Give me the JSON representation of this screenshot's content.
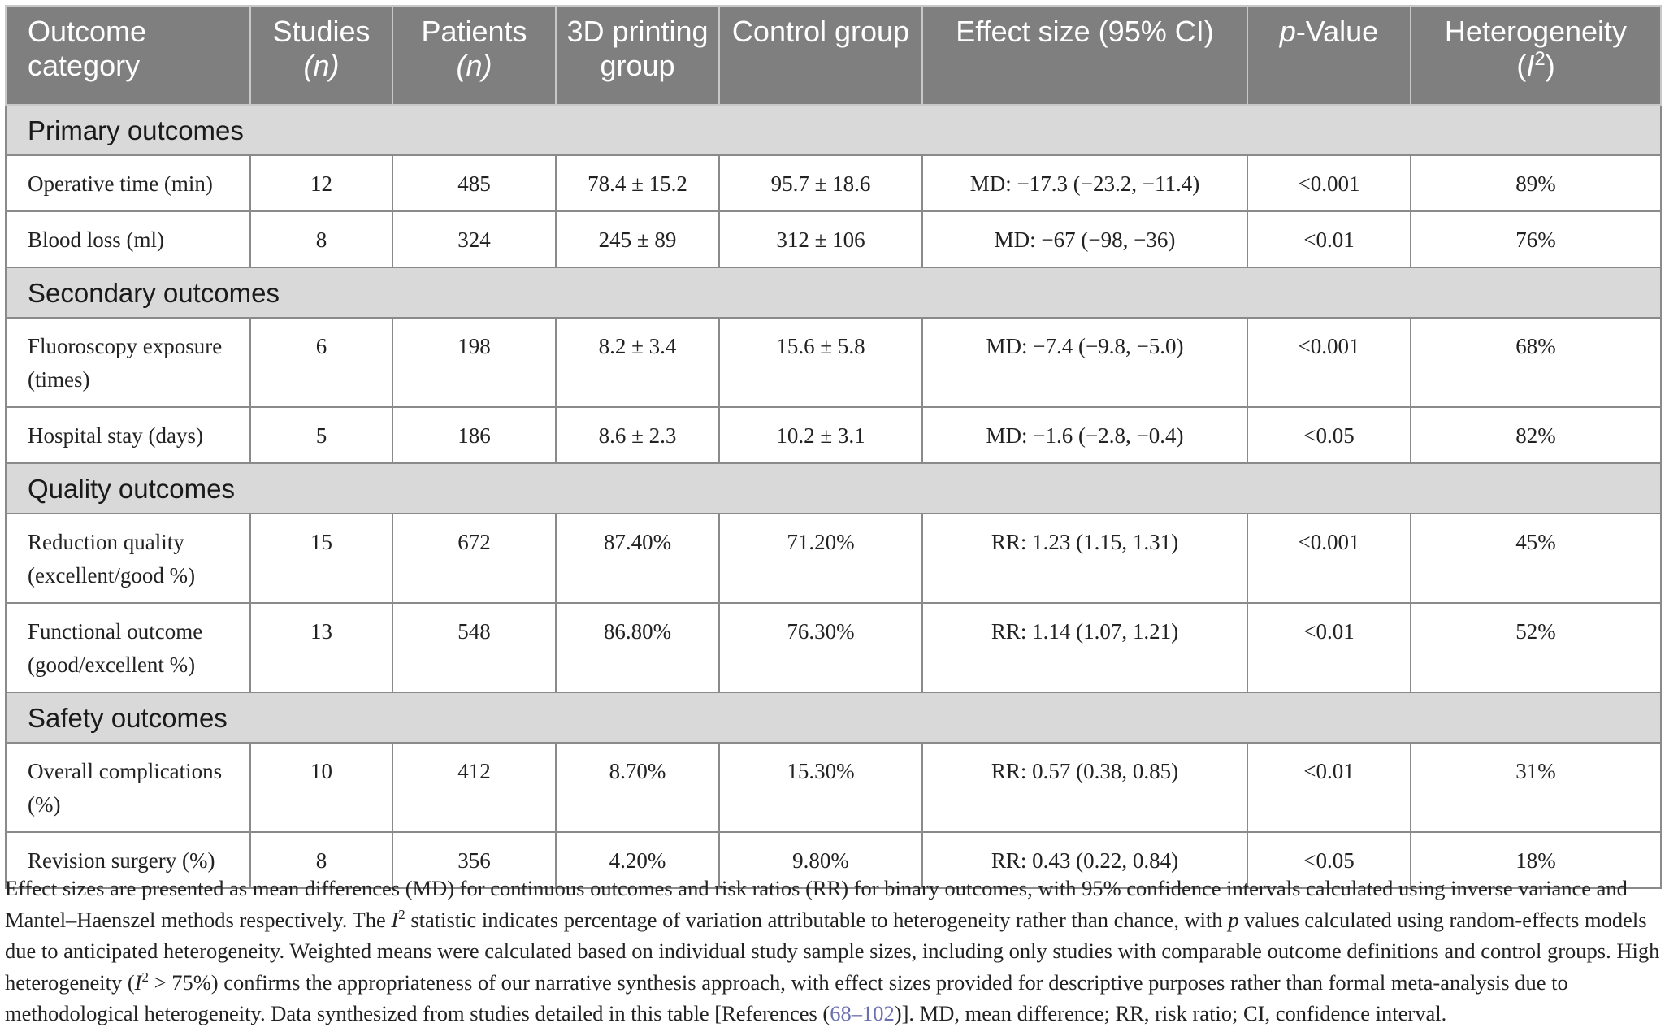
{
  "headers": {
    "outcome": "Outcome category",
    "studies": "Studies",
    "studies_n": "(n)",
    "patients": "Patients",
    "patients_n": "(n)",
    "printing": "3D printing group",
    "control": "Control group",
    "effect": "Effect size (95% CI)",
    "pvalue_p": "p",
    "pvalue_rest": "-Value",
    "het": "Heterogeneity",
    "het_open": "(",
    "het_i": "I",
    "het_sup": "2",
    "het_close": ")"
  },
  "sections": [
    {
      "title": "Primary outcomes",
      "rows": [
        {
          "outcome": "Operative time (min)",
          "studies": "12",
          "patients": "485",
          "printing": "78.4 ± 15.2",
          "control": "95.7 ± 18.6",
          "effect": "MD: −17.3 (−23.2, −11.4)",
          "p": "<0.001",
          "het": "89%"
        },
        {
          "outcome": "Blood loss (ml)",
          "studies": "8",
          "patients": "324",
          "printing": "245 ± 89",
          "control": "312 ± 106",
          "effect": "MD: −67 (−98, −36)",
          "p": "<0.01",
          "het": "76%"
        }
      ]
    },
    {
      "title": "Secondary outcomes",
      "rows": [
        {
          "outcome": "Fluoroscopy exposure (times)",
          "studies": "6",
          "patients": "198",
          "printing": "8.2 ± 3.4",
          "control": "15.6 ± 5.8",
          "effect": "MD: −7.4 (−9.8, −5.0)",
          "p": "<0.001",
          "het": "68%"
        },
        {
          "outcome": "Hospital stay (days)",
          "studies": "5",
          "patients": "186",
          "printing": "8.6 ± 2.3",
          "control": "10.2 ± 3.1",
          "effect": "MD: −1.6 (−2.8, −0.4)",
          "p": "<0.05",
          "het": "82%"
        }
      ]
    },
    {
      "title": "Quality outcomes",
      "rows": [
        {
          "outcome": "Reduction quality (excellent/good %)",
          "studies": "15",
          "patients": "672",
          "printing": "87.40%",
          "control": "71.20%",
          "effect": "RR: 1.23 (1.15, 1.31)",
          "p": "<0.001",
          "het": "45%"
        },
        {
          "outcome": "Functional outcome (good/excellent %)",
          "studies": "13",
          "patients": "548",
          "printing": "86.80%",
          "control": "76.30%",
          "effect": "RR: 1.14 (1.07, 1.21)",
          "p": "<0.01",
          "het": "52%"
        }
      ]
    },
    {
      "title": "Safety outcomes",
      "rows": [
        {
          "outcome": "Overall complications (%)",
          "studies": "10",
          "patients": "412",
          "printing": "8.70%",
          "control": "15.30%",
          "effect": "RR: 0.57 (0.38, 0.85)",
          "p": "<0.01",
          "het": "31%"
        },
        {
          "outcome": "Revision surgery (%)",
          "studies": "8",
          "patients": "356",
          "printing": "4.20%",
          "control": "9.80%",
          "effect": "RR: 0.43 (0.22, 0.84)",
          "p": "<0.05",
          "het": "18%"
        }
      ]
    }
  ],
  "footnote": {
    "t1": "Effect sizes are presented as mean differences (MD) for continuous outcomes and risk ratios (RR) for binary outcomes, with 95% confidence intervals calculated using inverse variance and Mantel–Haenszel methods respectively. The ",
    "i1": "I",
    "s1": "2",
    "t2": " statistic indicates percentage of variation attributable to heterogeneity rather than chance, with ",
    "p1": "p",
    "t3": " values calculated using random-effects models due to anticipated heterogeneity. Weighted means were calculated based on individual study sample sizes, including only studies with comparable outcome definitions and control groups. High heterogeneity (",
    "i2": "I",
    "s2": "2",
    "t4": " > 75%) confirms the appropriateness of our narrative synthesis approach, with effect sizes provided for descriptive purposes rather than formal meta-analysis due to methodological heterogeneity. Data synthesized from studies detailed in this table [References (",
    "ref": "68–102",
    "t5": ")]. MD, mean difference; RR, risk ratio; CI, confidence interval."
  }
}
